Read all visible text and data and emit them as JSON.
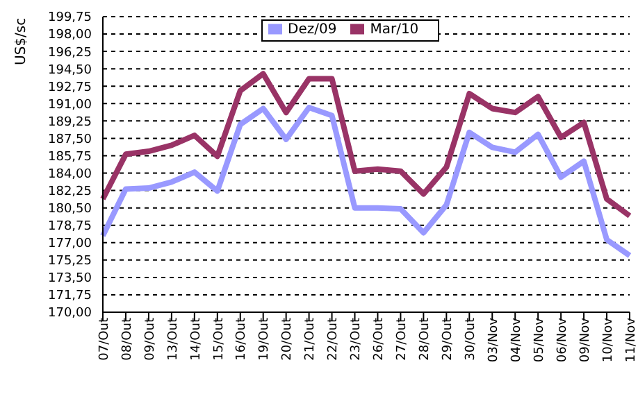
{
  "chart_data": {
    "type": "line",
    "ylabel": "US$/sc",
    "categories": [
      "07/Out",
      "08/Out",
      "09/Out",
      "13/Out",
      "14/Out",
      "15/Out",
      "16/Out",
      "19/Out",
      "20/Out",
      "21/Out",
      "22/Out",
      "23/Out",
      "26/Out",
      "27/Out",
      "28/Out",
      "29/Out",
      "30/Out",
      "03/Nov",
      "04/Nov",
      "05/Nov",
      "06/Nov",
      "09/Nov",
      "10/Nov",
      "11/Nov"
    ],
    "series": [
      {
        "name": "Dez/09",
        "color": "#9999ff",
        "values": [
          177.7,
          182.4,
          182.5,
          183.1,
          184.1,
          182.2,
          188.9,
          190.5,
          187.4,
          190.6,
          189.8,
          180.5,
          180.5,
          180.4,
          178.0,
          180.8,
          188.1,
          186.6,
          186.1,
          187.9,
          183.6,
          185.2,
          177.3,
          175.7
        ]
      },
      {
        "name": "Mar/10",
        "color": "#993366",
        "values": [
          181.4,
          185.9,
          186.2,
          186.8,
          187.8,
          185.7,
          192.3,
          194.0,
          190.1,
          193.5,
          193.5,
          184.2,
          184.4,
          184.2,
          181.9,
          184.6,
          192.0,
          190.5,
          190.1,
          191.7,
          187.6,
          189.1,
          181.4,
          179.7
        ]
      }
    ],
    "ylim": [
      170,
      199.75
    ],
    "yticks": [
      {
        "value": 170,
        "label": "170,00"
      },
      {
        "value": 171.75,
        "label": "171,75"
      },
      {
        "value": 173.5,
        "label": "173,50"
      },
      {
        "value": 175.25,
        "label": "175,25"
      },
      {
        "value": 177,
        "label": "177,00"
      },
      {
        "value": 178.75,
        "label": "178,75"
      },
      {
        "value": 180.5,
        "label": "180,50"
      },
      {
        "value": 182.25,
        "label": "182,25"
      },
      {
        "value": 184,
        "label": "184,00"
      },
      {
        "value": 185.75,
        "label": "185,75"
      },
      {
        "value": 187.5,
        "label": "187,50"
      },
      {
        "value": 189.25,
        "label": "189,25"
      },
      {
        "value": 191,
        "label": "191,00"
      },
      {
        "value": 192.75,
        "label": "192,75"
      },
      {
        "value": 194.5,
        "label": "194,50"
      },
      {
        "value": 196.25,
        "label": "196,25"
      },
      {
        "value": 198,
        "label": "198,00"
      },
      {
        "value": 199.75,
        "label": "199,75"
      }
    ],
    "grid": "y",
    "legend": "top",
    "marker": "none",
    "line_style": "solid"
  }
}
